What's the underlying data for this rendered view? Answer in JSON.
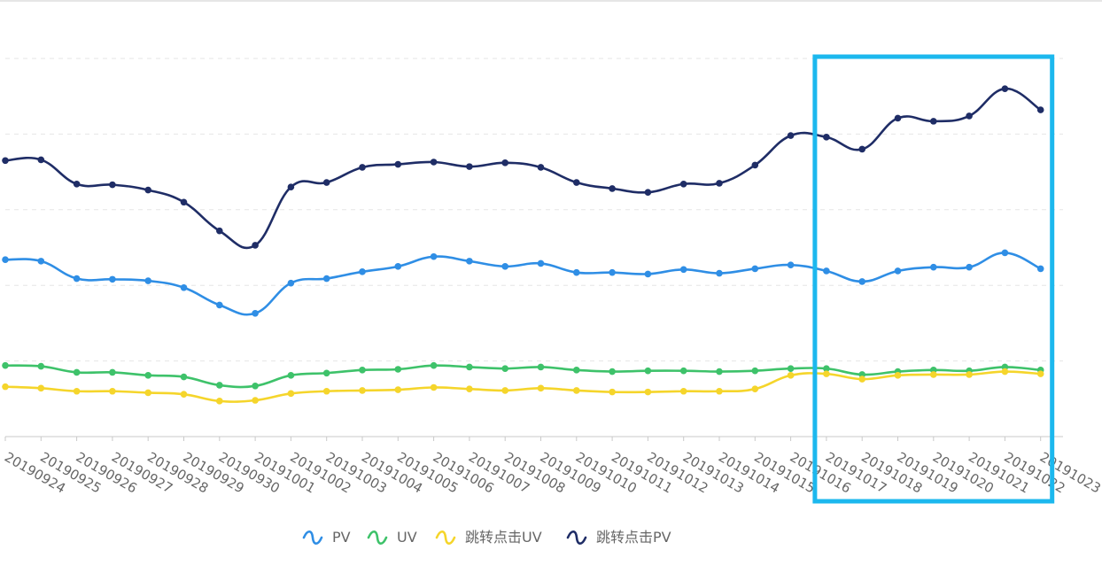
{
  "chart_data": {
    "type": "line",
    "smooth": true,
    "grid": "horizontal-dashed",
    "legend_position": "bottom-center",
    "ylim": [
      0,
      5
    ],
    "x": [
      "20190924",
      "20190925",
      "20190926",
      "20190927",
      "20190928",
      "20190929",
      "20190930",
      "20191001",
      "20191002",
      "20191003",
      "20191004",
      "20191005",
      "20191006",
      "20191007",
      "20191008",
      "20191009",
      "20191010",
      "20191011",
      "20191012",
      "20191013",
      "20191014",
      "20191015",
      "20191016",
      "20191017",
      "20191018",
      "20191019",
      "20191020",
      "20191021",
      "20191022",
      "20191023"
    ],
    "x_tick_labels": [
      "20190924",
      "20190925",
      "20190926",
      "20190927",
      "20190928",
      "20190929",
      "20190930",
      "20191001",
      "20191002",
      "20191003",
      "20191004",
      "20191005",
      "20191006",
      "20191007",
      "20191008",
      "20191009",
      "20191010",
      "20191011",
      "20191012",
      "20191013",
      "20191014",
      "20191015",
      "20191016",
      "20191017",
      "20191018",
      "20191019",
      "20191020",
      "20191021",
      "20191022",
      "20191023"
    ],
    "series": [
      {
        "name": "PV",
        "color": "#2f8ee5",
        "values": [
          2.34,
          2.32,
          2.09,
          2.08,
          2.06,
          1.97,
          1.74,
          1.63,
          2.03,
          2.09,
          2.18,
          2.25,
          2.38,
          2.32,
          2.25,
          2.29,
          2.17,
          2.17,
          2.15,
          2.21,
          2.16,
          2.22,
          2.27,
          2.19,
          2.05,
          2.19,
          2.24,
          2.24,
          2.43,
          2.22
        ]
      },
      {
        "name": "UV",
        "color": "#3ec26a",
        "values": [
          0.94,
          0.93,
          0.85,
          0.85,
          0.81,
          0.79,
          0.68,
          0.67,
          0.81,
          0.84,
          0.88,
          0.89,
          0.94,
          0.92,
          0.9,
          0.92,
          0.88,
          0.86,
          0.87,
          0.87,
          0.86,
          0.87,
          0.9,
          0.9,
          0.82,
          0.86,
          0.88,
          0.87,
          0.92,
          0.88
        ]
      },
      {
        "name": "跳转点击UV",
        "color": "#f5d52b",
        "values": [
          0.66,
          0.64,
          0.6,
          0.6,
          0.58,
          0.56,
          0.47,
          0.48,
          0.57,
          0.6,
          0.61,
          0.62,
          0.65,
          0.63,
          0.61,
          0.64,
          0.61,
          0.59,
          0.59,
          0.6,
          0.6,
          0.63,
          0.81,
          0.83,
          0.76,
          0.81,
          0.82,
          0.82,
          0.86,
          0.83
        ]
      },
      {
        "name": "跳转点击PV",
        "color": "#1f2d66",
        "values": [
          3.65,
          3.66,
          3.34,
          3.33,
          3.26,
          3.1,
          2.72,
          2.53,
          3.3,
          3.36,
          3.56,
          3.6,
          3.63,
          3.57,
          3.62,
          3.56,
          3.36,
          3.28,
          3.23,
          3.34,
          3.35,
          3.59,
          3.98,
          3.96,
          3.8,
          4.21,
          4.17,
          4.24,
          4.6,
          4.32
        ]
      }
    ],
    "legend": [
      "PV",
      "UV",
      "跳转点击UV",
      "跳转点击PV"
    ],
    "annotations": [
      {
        "type": "highlight-box",
        "color": "#1cb8ee",
        "from": "20191017",
        "to": "20191023"
      }
    ]
  }
}
